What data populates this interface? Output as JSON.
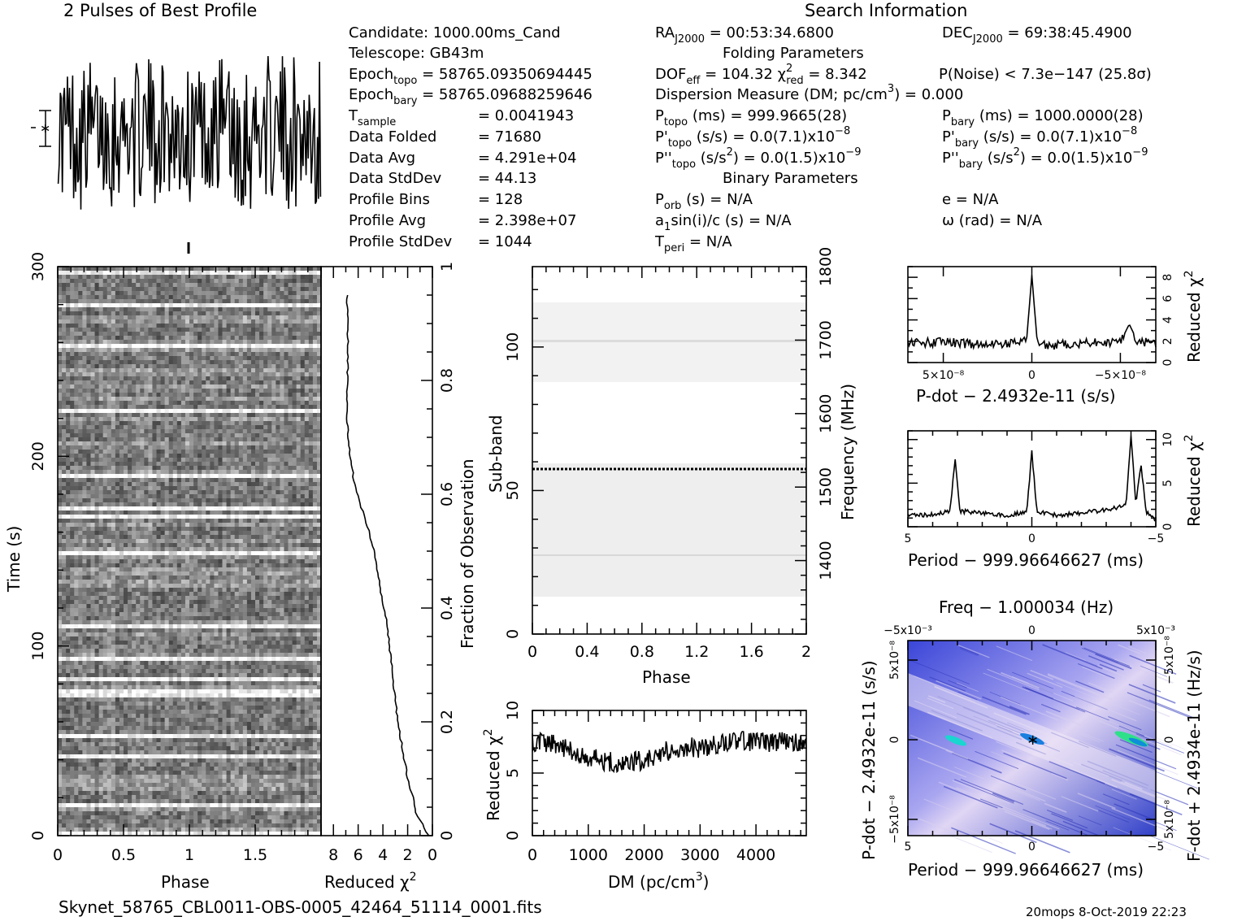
{
  "title_profile": "2 Pulses of Best Profile",
  "title_search": "Search Information",
  "info": {
    "candidate": "Candidate:  1000.00ms_Cand",
    "telescope": "Telescope:  GB43m",
    "epoch_topo": "Epoch",
    "epoch_topo_sub": "topo",
    "epoch_topo_val": " = 58765.09350694445",
    "epoch_bary": "Epoch",
    "epoch_bary_sub": "bary",
    "epoch_bary_val": " = 58765.09688259646",
    "tsample": "T",
    "tsample_sub": "sample",
    "tsample_val": "=   0.0041943",
    "data_folded": "Data Folded",
    "data_folded_val": "=   71680",
    "data_avg": "Data Avg",
    "data_avg_val": "=   4.291e+04",
    "data_std": "Data StdDev",
    "data_std_val": "=   44.13",
    "prof_bins": "Profile Bins",
    "prof_bins_val": "=   128",
    "prof_avg": "Profile Avg",
    "prof_avg_val": "=   2.398e+07",
    "prof_std": "Profile StdDev",
    "prof_std_val": "=   1044",
    "ra": "RA",
    "ra_sub": "J2000",
    "ra_val": " = 00:53:34.6800",
    "dec": "DEC",
    "dec_sub": "J2000",
    "dec_val": " = 69:38:45.4900",
    "folding_params": "Folding Parameters",
    "dof": "DOF",
    "dof_sub": "eff",
    "dof_val": " = 104.32   χ",
    "dof_sup": "2",
    "dof_sub2": "red",
    "dof_val2": " = 8.342",
    "pnoise": "P(Noise) < 7.3e−147   (25.8σ)",
    "dm_line": "Dispersion Measure (DM; pc/cm",
    "dm_sup": "3",
    "dm_val": ") = 0.000",
    "ptopo": "P",
    "ptopo_sub": "topo",
    "ptopo_val": " (ms) =   999.9665(28)",
    "pbary": "P",
    "pbary_sub": "bary",
    "pbary_val": " (ms) =   1000.0000(28)",
    "pdtopo": "P'",
    "pdtopo_sub": "topo",
    "pdtopo_val": " (s/s) = 0.0(7.1)x10",
    "pdtopo_exp": "−8",
    "pdbary": "P'",
    "pdbary_sub": "bary",
    "pdbary_val": " (s/s) = 0.0(7.1)x10",
    "pdbary_exp": "−8",
    "pddtopo": "P''",
    "pddtopo_sub": "topo",
    "pddtopo_val": " (s/s",
    "pddtopo_sup": "2",
    "pddtopo_val2": ") = 0.0(1.5)x10",
    "pddtopo_exp": "−9",
    "pddbary": "P''",
    "pddbary_sub": "bary",
    "pddbary_val": " (s/s",
    "pddbary_sup": "2",
    "pddbary_val2": ") = 0.0(1.5)x10",
    "pddbary_exp": "−9",
    "binary_params": "Binary Parameters",
    "porb": "P",
    "porb_sub": "orb",
    "porb_val": " (s) = N/A",
    "ecc": "e = N/A",
    "a1": "a",
    "a1_sub": "1",
    "a1_val": "sin(i)/c (s) = N/A",
    "omega": "ω (rad) = N/A",
    "tperi": "T",
    "tperi_sub": "peri",
    "tperi_val": " = N/A"
  },
  "footer": {
    "filename": "Skynet_58765_CBL0011-OBS-0005_42464_51114_0001.fits",
    "stamp": "20mops   8-Oct-2019 22:23"
  },
  "chart_data": [
    {
      "id": "profile",
      "type": "line",
      "title": "2 Pulses of Best Profile",
      "x": "phase 0–2 (two copies of 128-bin profile)",
      "note": "noise-like profile, no clear pulse"
    },
    {
      "id": "time_phase",
      "type": "heatmap",
      "xlabel": "Phase",
      "ylabel": "Time (s)",
      "xlim": [
        0,
        2
      ],
      "ylim": [
        0,
        300
      ],
      "xticks": [
        "0",
        "0.5",
        "1",
        "1.5"
      ],
      "yticks": [
        "0",
        "100",
        "200",
        "300"
      ]
    },
    {
      "id": "chi_vs_time",
      "type": "line",
      "xlabel": "Reduced χ",
      "xlabel_sup": "2",
      "ylabel": "Fraction of Observation",
      "xlim": [
        9,
        0
      ],
      "ylim": [
        0,
        1
      ],
      "xticks": [
        "8",
        "6",
        "4",
        "2",
        "0"
      ],
      "yticks": [
        "0",
        "0.2",
        "0.4",
        "0.6",
        "0.8",
        "1"
      ],
      "x": [
        0.3,
        0.8,
        1.3,
        1.6,
        2.0,
        2.4,
        2.8,
        3.1,
        3.4,
        3.7,
        4.1,
        4.4,
        4.7,
        5.2,
        5.8,
        6.3,
        6.6,
        6.8,
        6.9,
        6.9,
        6.8,
        6.9
      ],
      "y": [
        0.0,
        0.02,
        0.04,
        0.07,
        0.1,
        0.15,
        0.2,
        0.26,
        0.32,
        0.38,
        0.42,
        0.46,
        0.5,
        0.54,
        0.58,
        0.62,
        0.66,
        0.7,
        0.74,
        0.79,
        0.85,
        0.95
      ]
    },
    {
      "id": "subband",
      "type": "heatmap",
      "xlabel": "Phase",
      "ylabel": "Sub-band",
      "y2label": "Frequency (MHz)",
      "xlim": [
        0,
        2
      ],
      "ylim": [
        0,
        128
      ],
      "y2lim": [
        1300,
        1800
      ],
      "xticks": [
        "0",
        "0.4",
        "0.8",
        "1.2",
        "1.6",
        "2"
      ],
      "yticks": [
        "0",
        "50",
        "100"
      ],
      "y2ticks": [
        "1400",
        "1500",
        "1600",
        "1700",
        "1800"
      ],
      "highlight_subband": 58
    },
    {
      "id": "dm_curve",
      "type": "line",
      "xlabel": "DM (pc/cm",
      "xlabel_sup": "3",
      "xlabel_end": ")",
      "ylabel": "Reduced χ",
      "ylabel_sup": "2",
      "xlim": [
        0,
        4900
      ],
      "ylim": [
        0,
        10
      ],
      "xticks": [
        "0",
        "1000",
        "2000",
        "3000",
        "4000"
      ],
      "yticks": [
        "0",
        "5",
        "10"
      ],
      "x": [
        0,
        250,
        500,
        750,
        1000,
        1250,
        1500,
        1750,
        2000,
        2250,
        2500,
        2750,
        3000,
        3250,
        3500,
        3750,
        4000,
        4250,
        4500,
        4750,
        4900
      ],
      "y": [
        7.5,
        7.4,
        7.1,
        6.8,
        6.3,
        6.0,
        5.8,
        5.9,
        6.0,
        6.5,
        6.9,
        7.1,
        7.0,
        7.2,
        7.5,
        7.6,
        7.4,
        7.5,
        7.6,
        7.4,
        7.2
      ]
    },
    {
      "id": "pdot_curve",
      "type": "line",
      "xlabel": "P-dot − 2.4932e-11 (s/s)",
      "ylabel": "Reduced χ",
      "ylabel_sup": "2",
      "xticks": [
        "5×10⁻⁸",
        "0",
        "−5×10⁻⁸"
      ],
      "yticks": [
        "0",
        "2",
        "4",
        "6",
        "8"
      ],
      "ylim": [
        0,
        9
      ],
      "x": [
        7,
        5,
        3,
        1,
        0.3,
        0,
        -0.3,
        -1,
        -3,
        -5,
        -5.5,
        -6,
        -7
      ],
      "y": [
        1.8,
        1.9,
        1.7,
        1.8,
        2.0,
        8.2,
        2.0,
        1.6,
        1.8,
        1.9,
        3.6,
        1.9,
        1.8
      ]
    },
    {
      "id": "period_curve",
      "type": "line",
      "xlabel": "Period − 999.96646627 (ms)",
      "ylabel": "Reduced χ",
      "ylabel_sup": "2",
      "xticks": [
        "5",
        "0",
        "−5"
      ],
      "yticks": [
        "0",
        "5",
        "10"
      ],
      "ylim": [
        0,
        11
      ],
      "x": [
        5,
        4,
        3.3,
        3.1,
        2.9,
        1,
        0.2,
        0,
        -0.2,
        -1,
        -3,
        -3.8,
        -4.0,
        -4.2,
        -4.4,
        -4.6,
        -5
      ],
      "y": [
        1.3,
        1.4,
        1.8,
        7.8,
        1.8,
        1.3,
        1.7,
        8.6,
        1.7,
        1.3,
        1.9,
        2.5,
        10.3,
        2.5,
        7.2,
        1.8,
        0.8
      ]
    },
    {
      "id": "p_pdot",
      "type": "heatmap",
      "title": "Freq − 1.000034 (Hz)",
      "xlabel": "Period − 999.96646627 (ms)",
      "ylabel": "P-dot − 2.4932e-11 (s/s)",
      "y2label": "F-dot + 2.4934e-11 (Hz/s)",
      "xticks": [
        "5",
        "0",
        "−5"
      ],
      "topticks": [
        "−5x10⁻³",
        "0",
        "5x10⁻³"
      ],
      "yticks": [
        "5x10⁻⁸",
        "0",
        "−5x10⁻⁸"
      ],
      "y2ticks": [
        "−5x10⁻⁸",
        "0",
        "5x10⁻⁸"
      ]
    }
  ]
}
